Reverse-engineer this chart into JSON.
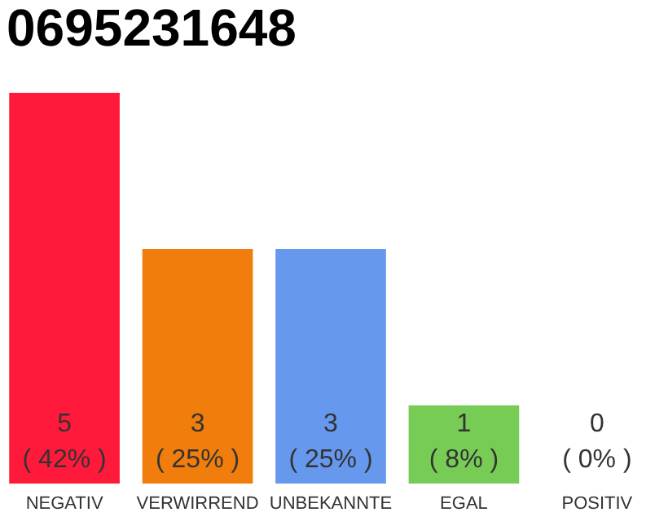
{
  "chart_data": {
    "type": "bar",
    "title": "0695231648",
    "categories": [
      "NEGATIV",
      "VERWIRREND",
      "UNBEKANNTE",
      "EGAL",
      "POSITIV"
    ],
    "values": [
      5,
      3,
      3,
      1,
      0
    ],
    "colors": [
      "#ff1a3c",
      "#f07d0c",
      "#6699ee",
      "#77cc55",
      "#bbbbbb"
    ],
    "value_labels": [
      "5\n( 42% )",
      "3\n( 25% )",
      "3\n( 25% )",
      "1\n( 8% )",
      "0\n( 0% )"
    ],
    "tick_labels": "x"
  }
}
